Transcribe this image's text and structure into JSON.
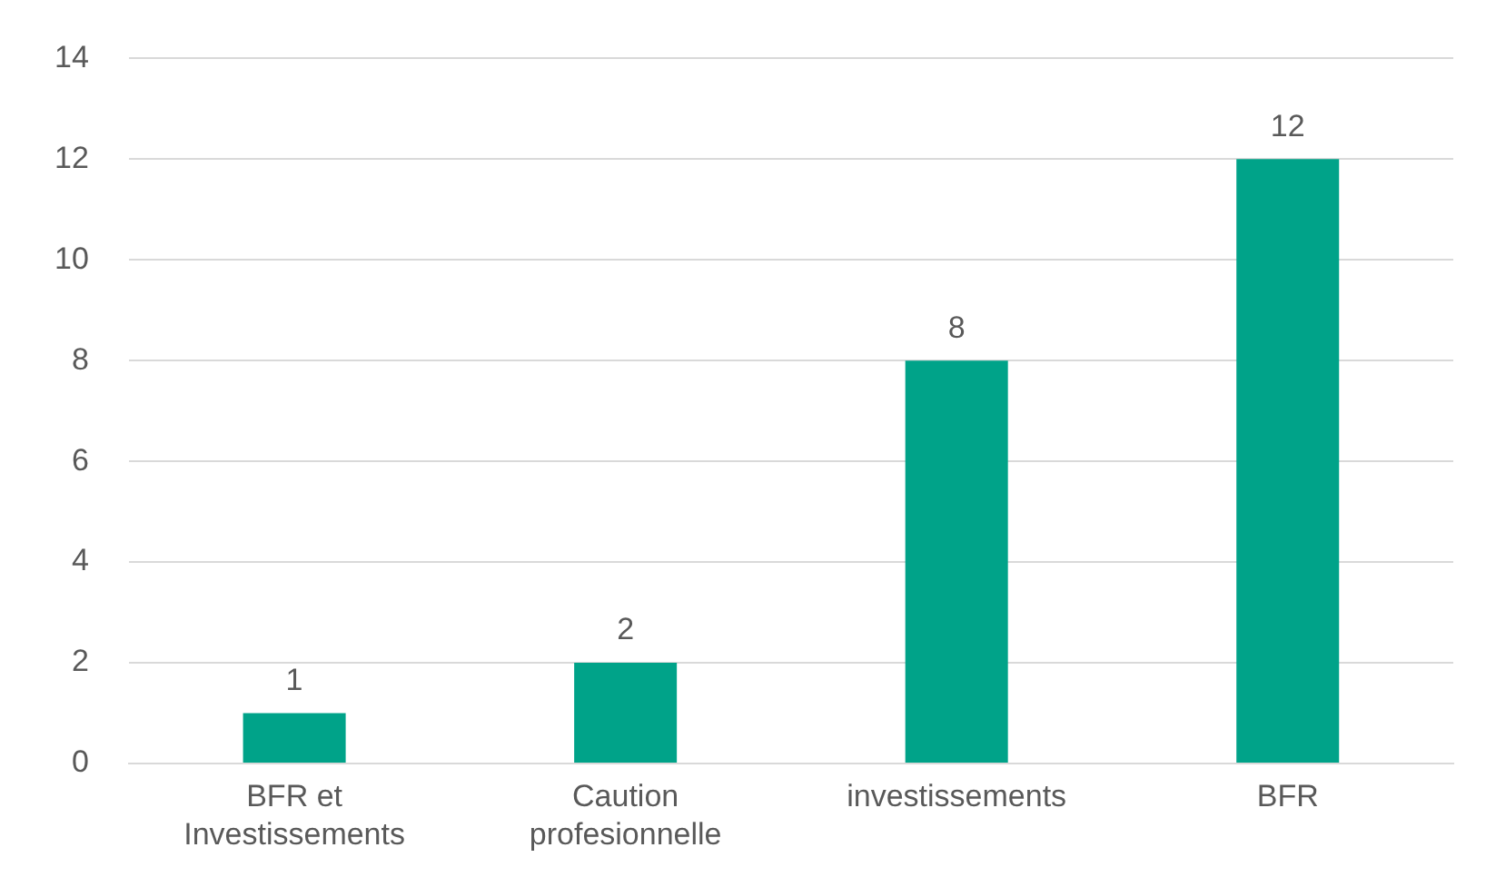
{
  "chart_data": {
    "type": "bar",
    "categories": [
      "BFR et Investissements",
      "Caution profesionnelle",
      "investissements",
      "BFR"
    ],
    "values": [
      1,
      2,
      8,
      12
    ],
    "color": "#00a389",
    "ylim": [
      0,
      14
    ],
    "yticks": [
      0,
      2,
      4,
      6,
      8,
      10,
      12,
      14
    ],
    "grid": "y",
    "data_labels": true
  }
}
